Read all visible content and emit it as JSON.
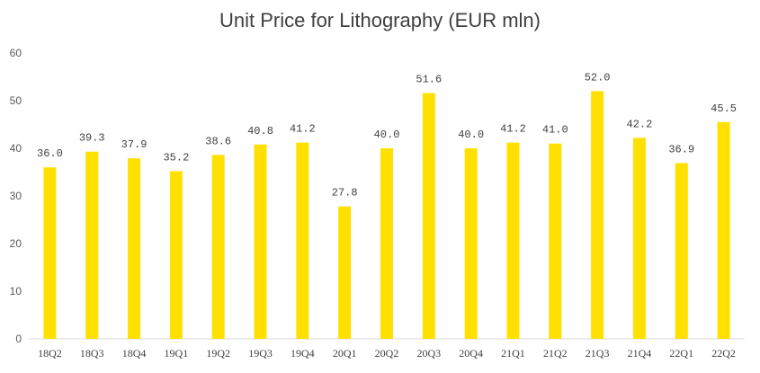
{
  "chart_data": {
    "type": "bar",
    "title": "Unit Price for Lithography (EUR mln)",
    "xlabel": "",
    "ylabel": "",
    "categories": [
      "18Q2",
      "18Q3",
      "18Q4",
      "19Q1",
      "19Q2",
      "19Q3",
      "19Q4",
      "20Q1",
      "20Q2",
      "20Q3",
      "20Q4",
      "21Q1",
      "21Q2",
      "21Q3",
      "21Q4",
      "22Q1",
      "22Q2"
    ],
    "values": [
      36.0,
      39.3,
      37.9,
      35.2,
      38.6,
      40.8,
      41.2,
      27.8,
      40.0,
      51.6,
      40.0,
      41.2,
      41.0,
      52.0,
      42.2,
      36.9,
      45.5
    ],
    "value_labels": [
      "36.0",
      "39.3",
      "37.9",
      "35.2",
      "38.6",
      "40.8",
      "41.2",
      "27.8",
      "40.0",
      "51.6",
      "40.0",
      "41.2",
      "41.0",
      "52.0",
      "42.2",
      "36.9",
      "45.5"
    ],
    "ylim": [
      0,
      60
    ],
    "yticks": [
      0,
      10,
      20,
      30,
      40,
      50,
      60
    ],
    "grid": false,
    "legend": "none",
    "bar_color": "#FFE000"
  }
}
